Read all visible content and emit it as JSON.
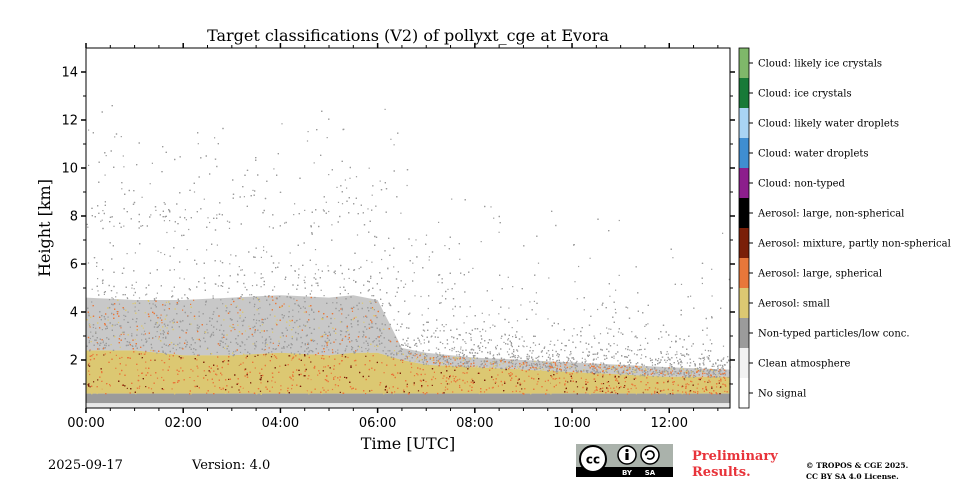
{
  "chart_data": {
    "type": "heatmap",
    "title": "Target classifications (V2) of pollyxt_cge at Evora",
    "xlabel": "Time [UTC]",
    "ylabel": "Height [km]",
    "xlim": [
      0,
      13.25
    ],
    "ylim": [
      0,
      15
    ],
    "x_ticks": [
      "00:00",
      "02:00",
      "04:00",
      "06:00",
      "08:00",
      "10:00",
      "12:00"
    ],
    "y_ticks": [
      "2",
      "4",
      "6",
      "8",
      "10",
      "12",
      "14"
    ],
    "colorbar": [
      {
        "label": "No signal",
        "color": "#ffffff"
      },
      {
        "label": "Clean atmosphere",
        "color": "#f2f2f2"
      },
      {
        "label": "Non-typed particles/low conc.",
        "color": "#9b9b9b"
      },
      {
        "label": "Aerosol: small",
        "color": "#dcc872"
      },
      {
        "label": "Aerosol: large, spherical",
        "color": "#e8773a"
      },
      {
        "label": "Aerosol: mixture, partly non-spherical",
        "color": "#7a1f08"
      },
      {
        "label": "Aerosol: large, non-spherical",
        "color": "#000000"
      },
      {
        "label": "Cloud: non-typed",
        "color": "#8c1e8c"
      },
      {
        "label": "Cloud: water droplets",
        "color": "#3f8ed1"
      },
      {
        "label": "Cloud: likely water droplets",
        "color": "#a9d4f4"
      },
      {
        "label": "Cloud: ice crystals",
        "color": "#187a38"
      },
      {
        "label": "Cloud: likely ice crystals",
        "color": "#7fb86a"
      }
    ],
    "layers": {
      "time_h": [
        0,
        1,
        2,
        3,
        4,
        5,
        5.5,
        6,
        6.5,
        7,
        8,
        9,
        10,
        11,
        12,
        13.25
      ],
      "small_aerosol_top_km": [
        2.4,
        2.4,
        2.2,
        2.2,
        2.3,
        2.2,
        2.3,
        2.3,
        2.0,
        1.8,
        1.7,
        1.6,
        1.5,
        1.4,
        1.3,
        1.3
      ],
      "aerosol_layer_top_km": [
        4.6,
        4.5,
        4.5,
        4.6,
        4.7,
        4.6,
        4.7,
        4.5,
        2.5,
        2.3,
        2.1,
        2.0,
        1.9,
        1.8,
        1.7,
        1.6
      ],
      "scattered_signal_top_km": [
        7.5,
        7.5,
        7.2,
        7.5,
        7.5,
        7.6,
        8.0,
        8.3,
        5.0,
        4.5,
        4.0,
        3.5,
        3.0,
        3.0,
        2.8,
        2.5
      ],
      "near_surface_band_km": [
        0.2,
        0.6
      ]
    }
  },
  "footer": {
    "date": "2025-09-17",
    "version": "Version: 4.0",
    "preliminary_line1": "Preliminary",
    "preliminary_line2": "Results.",
    "copyright_line1": "© TROPOS & CGE 2025.",
    "copyright_line2": "CC BY SA 4.0 License.",
    "badge_by": "BY",
    "badge_sa": "SA",
    "badge_cc": "cc"
  }
}
